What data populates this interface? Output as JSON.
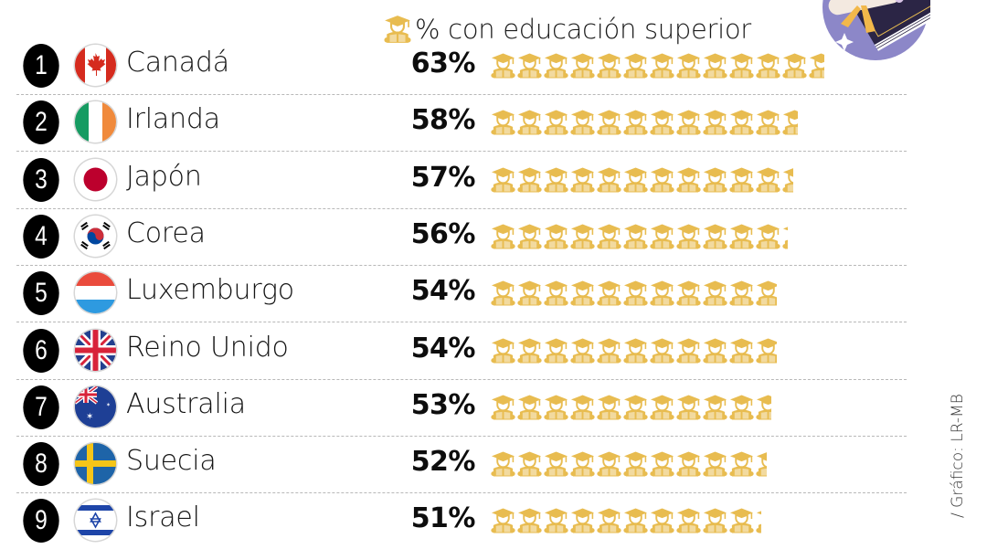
{
  "header": {
    "title": "% con educación superior",
    "icon": "graduate-reading-icon"
  },
  "colors": {
    "icon_gold": "#E8BC50",
    "rank_bg": "#000000",
    "divider": "#B8B8B8",
    "deco_circle": "#8C87C8",
    "deco_book": "#2B2545"
  },
  "icon_unit_percent": 5,
  "rows": [
    {
      "rank": "1",
      "country": "Canadá",
      "flag": "canada",
      "pct_label": "63%",
      "value": 63
    },
    {
      "rank": "2",
      "country": "Irlanda",
      "flag": "ireland",
      "pct_label": "58%",
      "value": 58
    },
    {
      "rank": "3",
      "country": "Japón",
      "flag": "japan",
      "pct_label": "57%",
      "value": 57
    },
    {
      "rank": "4",
      "country": "Corea",
      "flag": "korea",
      "pct_label": "56%",
      "value": 56
    },
    {
      "rank": "5",
      "country": "Luxemburgo",
      "flag": "luxembourg",
      "pct_label": "54%",
      "value": 54
    },
    {
      "rank": "6",
      "country": "Reino Unido",
      "flag": "uk",
      "pct_label": "54%",
      "value": 54
    },
    {
      "rank": "7",
      "country": "Australia",
      "flag": "australia",
      "pct_label": "53%",
      "value": 53
    },
    {
      "rank": "8",
      "country": "Suecia",
      "flag": "sweden",
      "pct_label": "52%",
      "value": 52
    },
    {
      "rank": "9",
      "country": "Israel",
      "flag": "israel",
      "pct_label": "51%",
      "value": 51
    }
  ],
  "credit": "/ Gráfico: LR-MB",
  "chart_data": {
    "type": "bar",
    "title": "% con educación superior",
    "categories": [
      "Canadá",
      "Irlanda",
      "Japón",
      "Corea",
      "Luxemburgo",
      "Reino Unido",
      "Australia",
      "Suecia",
      "Israel"
    ],
    "values": [
      63,
      58,
      57,
      56,
      54,
      54,
      53,
      52,
      51
    ],
    "orientation": "horizontal",
    "style": "pictogram",
    "xlabel": "",
    "ylabel": "",
    "grid": false,
    "legend": null
  }
}
